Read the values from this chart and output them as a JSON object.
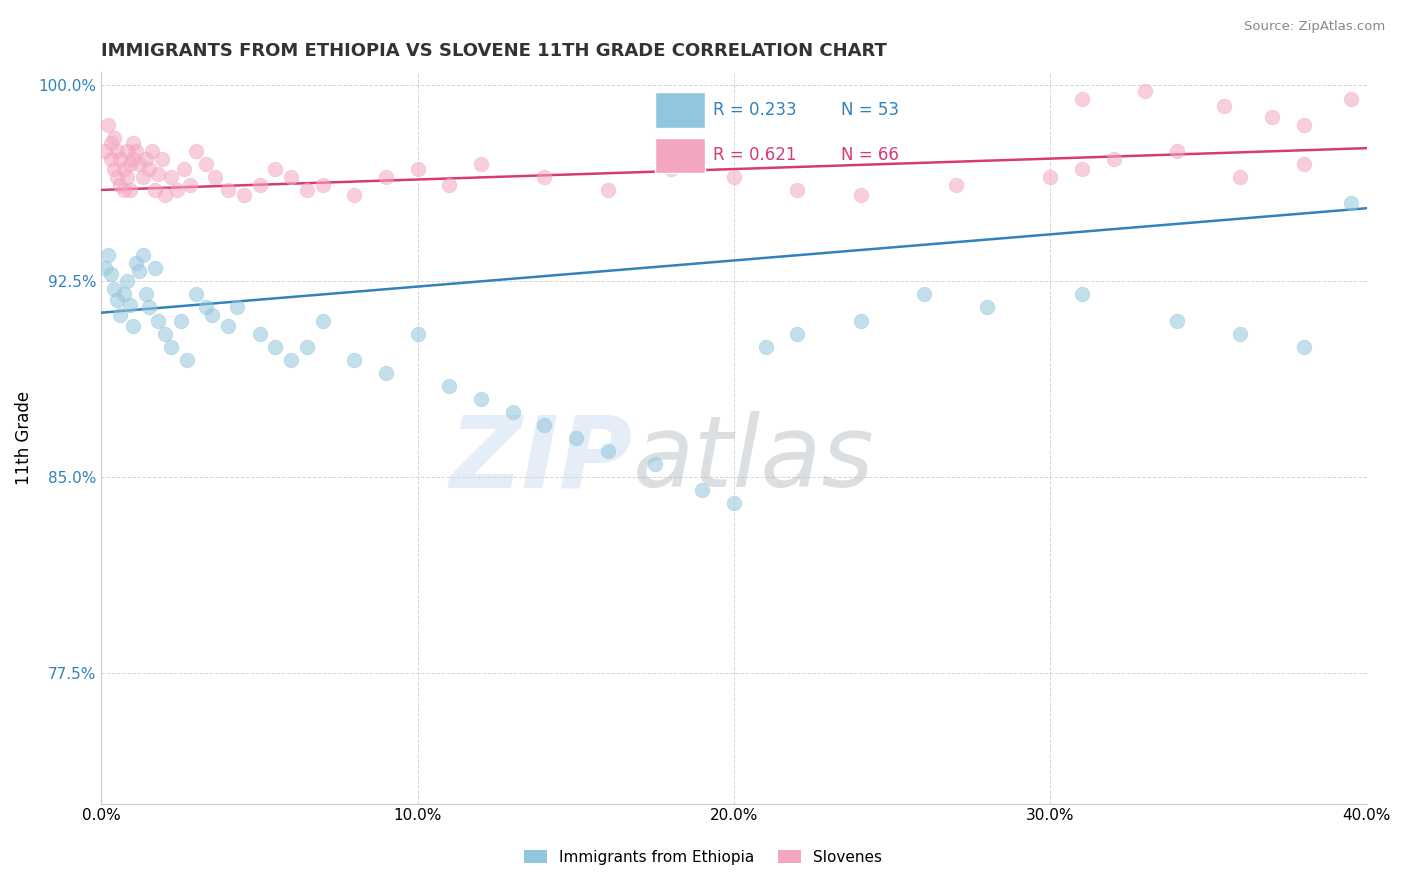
{
  "title": "IMMIGRANTS FROM ETHIOPIA VS SLOVENE 11TH GRADE CORRELATION CHART",
  "source_text": "Source: ZipAtlas.com",
  "ylabel": "11th Grade",
  "xlim": [
    0.0,
    0.4
  ],
  "ylim": [
    0.725,
    1.005
  ],
  "xtick_labels": [
    "0.0%",
    "10.0%",
    "20.0%",
    "30.0%",
    "40.0%"
  ],
  "xtick_vals": [
    0.0,
    0.1,
    0.2,
    0.3,
    0.4
  ],
  "ytick_labels": [
    "77.5%",
    "85.0%",
    "92.5%",
    "100.0%"
  ],
  "ytick_vals": [
    0.775,
    0.85,
    0.925,
    1.0
  ],
  "blue_R": 0.233,
  "blue_N": 53,
  "pink_R": 0.621,
  "pink_N": 66,
  "blue_color": "#92c5de",
  "pink_color": "#f4a6c0",
  "blue_trend_color": "#3182bd",
  "pink_trend_color": "#d63a78",
  "legend_label_blue": "Immigrants from Ethiopia",
  "legend_label_pink": "Slovenes",
  "watermark": "ZIPatlas",
  "watermark_blue": "#c6d9f0",
  "watermark_gray": "#b0b8c0",
  "blue_x": [
    0.001,
    0.002,
    0.003,
    0.004,
    0.005,
    0.006,
    0.007,
    0.008,
    0.009,
    0.01,
    0.011,
    0.012,
    0.013,
    0.014,
    0.015,
    0.017,
    0.018,
    0.02,
    0.022,
    0.025,
    0.027,
    0.03,
    0.033,
    0.035,
    0.04,
    0.043,
    0.05,
    0.055,
    0.06,
    0.065,
    0.07,
    0.08,
    0.09,
    0.1,
    0.11,
    0.12,
    0.13,
    0.14,
    0.15,
    0.16,
    0.175,
    0.19,
    0.2,
    0.21,
    0.22,
    0.24,
    0.26,
    0.28,
    0.31,
    0.34,
    0.36,
    0.38,
    0.395
  ],
  "blue_y": [
    0.93,
    0.935,
    0.928,
    0.922,
    0.918,
    0.912,
    0.92,
    0.925,
    0.916,
    0.908,
    0.932,
    0.929,
    0.935,
    0.92,
    0.915,
    0.93,
    0.91,
    0.905,
    0.9,
    0.91,
    0.895,
    0.92,
    0.915,
    0.912,
    0.908,
    0.915,
    0.905,
    0.9,
    0.895,
    0.9,
    0.91,
    0.895,
    0.89,
    0.905,
    0.885,
    0.88,
    0.875,
    0.87,
    0.865,
    0.86,
    0.855,
    0.845,
    0.84,
    0.9,
    0.905,
    0.91,
    0.92,
    0.915,
    0.92,
    0.91,
    0.905,
    0.9,
    0.955
  ],
  "pink_x": [
    0.001,
    0.002,
    0.003,
    0.003,
    0.004,
    0.004,
    0.005,
    0.005,
    0.006,
    0.006,
    0.007,
    0.007,
    0.008,
    0.008,
    0.009,
    0.009,
    0.01,
    0.01,
    0.011,
    0.012,
    0.013,
    0.014,
    0.015,
    0.016,
    0.017,
    0.018,
    0.019,
    0.02,
    0.022,
    0.024,
    0.026,
    0.028,
    0.03,
    0.033,
    0.036,
    0.04,
    0.045,
    0.05,
    0.055,
    0.06,
    0.065,
    0.07,
    0.08,
    0.09,
    0.1,
    0.11,
    0.12,
    0.14,
    0.16,
    0.18,
    0.2,
    0.22,
    0.24,
    0.27,
    0.3,
    0.31,
    0.32,
    0.34,
    0.36,
    0.38,
    0.31,
    0.33,
    0.355,
    0.37,
    0.38,
    0.395
  ],
  "pink_y": [
    0.975,
    0.985,
    0.972,
    0.978,
    0.968,
    0.98,
    0.965,
    0.975,
    0.962,
    0.972,
    0.968,
    0.96,
    0.975,
    0.965,
    0.97,
    0.96,
    0.978,
    0.972,
    0.975,
    0.97,
    0.965,
    0.972,
    0.968,
    0.975,
    0.96,
    0.966,
    0.972,
    0.958,
    0.965,
    0.96,
    0.968,
    0.962,
    0.975,
    0.97,
    0.965,
    0.96,
    0.958,
    0.962,
    0.968,
    0.965,
    0.96,
    0.962,
    0.958,
    0.965,
    0.968,
    0.962,
    0.97,
    0.965,
    0.96,
    0.968,
    0.965,
    0.96,
    0.958,
    0.962,
    0.965,
    0.968,
    0.972,
    0.975,
    0.965,
    0.97,
    0.995,
    0.998,
    0.992,
    0.988,
    0.985,
    0.995
  ]
}
